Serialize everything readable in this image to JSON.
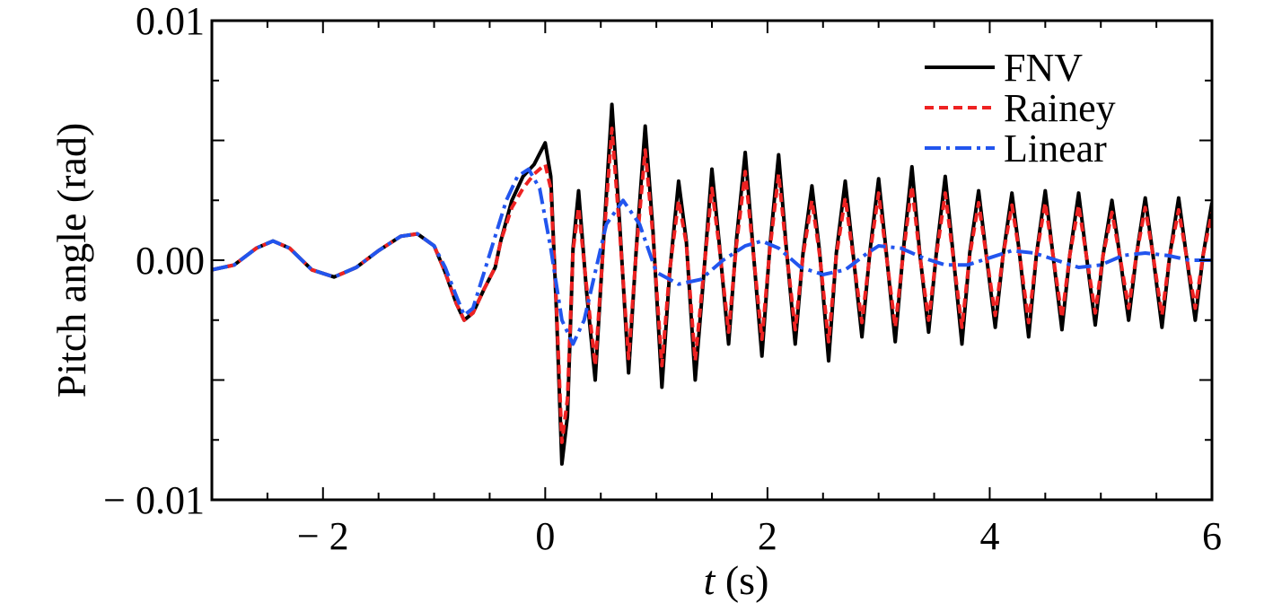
{
  "chart_data": {
    "type": "line",
    "xlabel_var": "t",
    "xlabel_unit": " (s)",
    "ylabel": "Pitch angle (rad)",
    "xlim": [
      -3,
      6
    ],
    "ylim": [
      -0.01,
      0.01
    ],
    "x_ticks": [
      -2,
      0,
      2,
      4,
      6
    ],
    "x_tick_labels": [
      "− 2",
      "0",
      "2",
      "4",
      "6"
    ],
    "y_ticks": [
      -0.01,
      0.0,
      0.01
    ],
    "y_tick_labels": [
      "− 0.01",
      "0.00",
      "0.01"
    ],
    "legend_position": "top-right",
    "grid": false,
    "series": [
      {
        "name": "FNV",
        "color": "#000000",
        "style": "solid",
        "x": [
          -3.0,
          -2.8,
          -2.6,
          -2.45,
          -2.3,
          -2.1,
          -1.9,
          -1.7,
          -1.5,
          -1.3,
          -1.15,
          -1.0,
          -0.9,
          -0.8,
          -0.73,
          -0.65,
          -0.55,
          -0.45,
          -0.4,
          -0.3,
          -0.2,
          -0.1,
          0.0,
          0.05,
          0.1,
          0.15,
          0.2,
          0.25,
          0.3,
          0.37,
          0.45,
          0.52,
          0.6,
          0.67,
          0.75,
          0.82,
          0.9,
          0.97,
          1.05,
          1.12,
          1.2,
          1.27,
          1.35,
          1.42,
          1.5,
          1.57,
          1.65,
          1.72,
          1.8,
          1.87,
          1.95,
          2.02,
          2.1,
          2.17,
          2.25,
          2.32,
          2.4,
          2.47,
          2.55,
          2.62,
          2.7,
          2.77,
          2.85,
          2.92,
          3.0,
          3.07,
          3.15,
          3.22,
          3.3,
          3.37,
          3.45,
          3.52,
          3.6,
          3.67,
          3.75,
          3.82,
          3.9,
          3.97,
          4.05,
          4.12,
          4.2,
          4.27,
          4.35,
          4.42,
          4.5,
          4.57,
          4.65,
          4.72,
          4.8,
          4.87,
          4.95,
          5.02,
          5.1,
          5.17,
          5.25,
          5.32,
          5.4,
          5.47,
          5.55,
          5.62,
          5.7,
          5.77,
          5.85,
          5.92,
          6.0
        ],
        "y": [
          -0.0004,
          -0.0002,
          0.0005,
          0.0008,
          0.0005,
          -0.0004,
          -0.0007,
          -0.0003,
          0.0004,
          0.001,
          0.0011,
          0.0006,
          -0.0005,
          -0.0018,
          -0.0025,
          -0.0022,
          -0.0012,
          -0.0003,
          0.0008,
          0.0025,
          0.0035,
          0.004,
          0.0049,
          0.0035,
          -0.002,
          -0.0085,
          -0.0065,
          0.0005,
          0.0029,
          -0.0012,
          -0.005,
          0.0005,
          0.0065,
          0.0015,
          -0.0047,
          0.0005,
          0.0056,
          0.0012,
          -0.0053,
          -0.0005,
          0.0033,
          0.0008,
          -0.005,
          -0.001,
          0.0038,
          0.0005,
          -0.0035,
          0.0008,
          0.0045,
          0.0005,
          -0.004,
          0.0005,
          0.0044,
          0.0005,
          -0.0035,
          0.0003,
          0.0031,
          0.0003,
          -0.0042,
          0.0003,
          0.0033,
          0.0003,
          -0.0032,
          0.0003,
          0.0034,
          0.0003,
          -0.0034,
          0.0003,
          0.0039,
          0.0003,
          -0.003,
          0.0003,
          0.0035,
          0.0003,
          -0.0035,
          0.0003,
          0.0029,
          0.0002,
          -0.0028,
          0.0002,
          0.0028,
          0.0002,
          -0.0032,
          0.0002,
          0.0029,
          0.0002,
          -0.0029,
          0.0002,
          0.0028,
          0.0002,
          -0.0027,
          0.0002,
          0.0025,
          0.0002,
          -0.0025,
          0.0002,
          0.0026,
          0.0002,
          -0.0028,
          0.0002,
          0.0026,
          0.0002,
          -0.0025,
          0.0002,
          0.0024
        ]
      },
      {
        "name": "Rainey",
        "color": "#ee2222",
        "style": "dashed",
        "x": [
          -3.0,
          -2.8,
          -2.6,
          -2.45,
          -2.3,
          -2.1,
          -1.9,
          -1.7,
          -1.5,
          -1.3,
          -1.15,
          -1.0,
          -0.9,
          -0.8,
          -0.73,
          -0.65,
          -0.55,
          -0.45,
          -0.4,
          -0.3,
          -0.2,
          -0.1,
          0.0,
          0.05,
          0.1,
          0.15,
          0.2,
          0.25,
          0.3,
          0.37,
          0.45,
          0.52,
          0.6,
          0.67,
          0.75,
          0.82,
          0.9,
          0.97,
          1.05,
          1.12,
          1.2,
          1.27,
          1.35,
          1.42,
          1.5,
          1.57,
          1.65,
          1.72,
          1.8,
          1.87,
          1.95,
          2.02,
          2.1,
          2.17,
          2.25,
          2.32,
          2.4,
          2.47,
          2.55,
          2.62,
          2.7,
          2.77,
          2.85,
          2.92,
          3.0,
          3.07,
          3.15,
          3.22,
          3.3,
          3.37,
          3.45,
          3.52,
          3.6,
          3.67,
          3.75,
          3.82,
          3.9,
          3.97,
          4.05,
          4.12,
          4.2,
          4.27,
          4.35,
          4.42,
          4.5,
          4.57,
          4.65,
          4.72,
          4.8,
          4.87,
          4.95,
          5.02,
          5.1,
          5.17,
          5.25,
          5.32,
          5.4,
          5.47,
          5.55,
          5.62,
          5.7,
          5.77,
          5.85,
          5.92,
          6.0
        ],
        "y": [
          -0.0004,
          -0.0002,
          0.0005,
          0.0008,
          0.0005,
          -0.0004,
          -0.0007,
          -0.0003,
          0.0004,
          0.001,
          0.0011,
          0.0006,
          -0.0005,
          -0.0018,
          -0.0025,
          -0.0022,
          -0.0012,
          -0.0003,
          0.0008,
          0.0022,
          0.003,
          0.0036,
          0.004,
          0.003,
          -0.0018,
          -0.0076,
          -0.0058,
          0.0004,
          0.0022,
          -0.001,
          -0.0044,
          0.0004,
          0.0055,
          0.0012,
          -0.0041,
          0.0004,
          0.0046,
          0.001,
          -0.0044,
          -0.0004,
          0.0025,
          0.0007,
          -0.0042,
          -0.0008,
          0.003,
          0.0004,
          -0.003,
          0.0006,
          0.0037,
          0.0004,
          -0.0033,
          0.0004,
          0.0036,
          0.0004,
          -0.0029,
          0.0002,
          0.0025,
          0.0002,
          -0.0034,
          0.0002,
          0.0026,
          0.0002,
          -0.0026,
          0.0002,
          0.0028,
          0.0002,
          -0.0028,
          0.0002,
          0.0031,
          0.0002,
          -0.0025,
          0.0002,
          0.0028,
          0.0002,
          -0.0028,
          0.0002,
          0.0024,
          0.0002,
          -0.0023,
          0.0002,
          0.0023,
          0.0002,
          -0.0026,
          0.0002,
          0.0024,
          0.0002,
          -0.0024,
          0.0002,
          0.0023,
          0.0002,
          -0.0022,
          0.0002,
          0.002,
          0.0002,
          -0.002,
          0.0002,
          0.0022,
          0.0002,
          -0.0023,
          0.0002,
          0.0021,
          0.0002,
          -0.002,
          0.0002,
          0.002
        ]
      },
      {
        "name": "Linear",
        "color": "#2255ee",
        "style": "dashdot",
        "x": [
          -3.0,
          -2.8,
          -2.6,
          -2.45,
          -2.3,
          -2.1,
          -1.9,
          -1.7,
          -1.5,
          -1.3,
          -1.15,
          -1.0,
          -0.9,
          -0.8,
          -0.73,
          -0.65,
          -0.55,
          -0.45,
          -0.35,
          -0.25,
          -0.15,
          -0.05,
          0.05,
          0.15,
          0.25,
          0.35,
          0.45,
          0.55,
          0.7,
          0.85,
          1.0,
          1.2,
          1.4,
          1.6,
          1.8,
          1.95,
          2.1,
          2.3,
          2.5,
          2.7,
          2.9,
          3.0,
          3.2,
          3.4,
          3.6,
          3.8,
          4.0,
          4.2,
          4.4,
          4.6,
          4.8,
          5.0,
          5.2,
          5.4,
          5.6,
          5.8,
          6.0
        ],
        "y": [
          -0.0004,
          -0.0002,
          0.0005,
          0.0008,
          0.0005,
          -0.0004,
          -0.0007,
          -0.0003,
          0.0004,
          0.001,
          0.0011,
          0.0006,
          -0.0003,
          -0.0015,
          -0.0023,
          -0.002,
          -0.0005,
          0.001,
          0.0025,
          0.0035,
          0.0038,
          0.003,
          0.0005,
          -0.0025,
          -0.0035,
          -0.0025,
          -0.0005,
          0.0015,
          0.0025,
          0.0015,
          -0.0005,
          -0.001,
          -0.0008,
          0.0,
          0.0006,
          0.0008,
          0.0005,
          -0.0003,
          -0.0006,
          -0.0004,
          0.0003,
          0.0006,
          0.0005,
          0.0001,
          -0.0002,
          -0.0002,
          0.0001,
          0.0004,
          0.0003,
          0.0,
          -0.0003,
          -0.0002,
          0.0002,
          0.0003,
          0.0002,
          0.0,
          0.0
        ]
      }
    ]
  }
}
